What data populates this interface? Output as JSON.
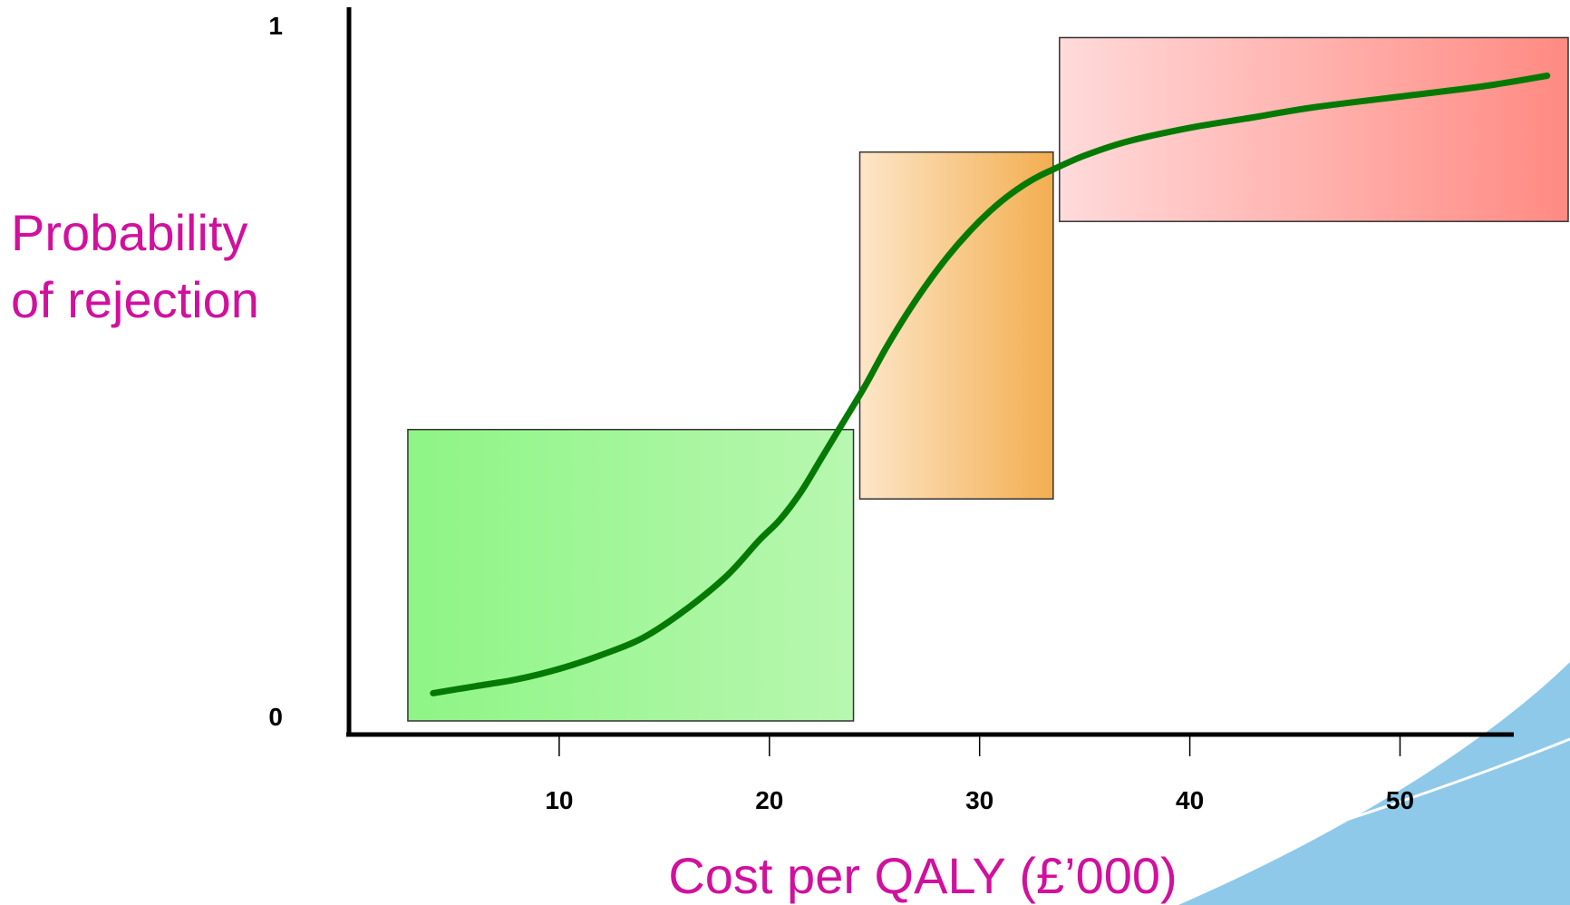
{
  "chart_data": {
    "type": "line",
    "title": "",
    "xlabel": "Cost per QALY (£’000)",
    "ylabel_lines": [
      "Probability",
      "of rejection"
    ],
    "xlim": [
      0,
      58
    ],
    "ylim": [
      0,
      1
    ],
    "x_ticks": [
      10,
      20,
      30,
      40,
      50
    ],
    "x_tick_labels": [
      "10",
      "20",
      "30",
      "40",
      "50"
    ],
    "y_tick_labels": {
      "min": "0",
      "max": "1"
    },
    "grid": false,
    "legend": "none",
    "curve": {
      "x": [
        4,
        6,
        8,
        10,
        12,
        14,
        16,
        18,
        19.5,
        20.5,
        21.5,
        22.5,
        23.5,
        24.5,
        25.5,
        26.5,
        27.5,
        28.5,
        29.5,
        30.5,
        31.5,
        32.5,
        33.5,
        35,
        37,
        40,
        43,
        46,
        50,
        54,
        57
      ],
      "y": [
        0.04,
        0.05,
        0.06,
        0.075,
        0.095,
        0.12,
        0.16,
        0.21,
        0.26,
        0.29,
        0.33,
        0.38,
        0.43,
        0.48,
        0.535,
        0.585,
        0.63,
        0.67,
        0.705,
        0.735,
        0.76,
        0.78,
        0.795,
        0.815,
        0.835,
        0.855,
        0.87,
        0.885,
        0.9,
        0.915,
        0.93
      ]
    },
    "regions": [
      {
        "x_start": 2.8,
        "x_end": 24.0,
        "y_start": 0.0,
        "y_end": 0.42,
        "color_light": "#b8f7b0",
        "color_dark": "#8ef585"
      },
      {
        "x_start": 24.3,
        "x_end": 33.5,
        "y_start": 0.32,
        "y_end": 0.82,
        "color_light": "#fde6c8",
        "color_dark": "#f3ae50"
      },
      {
        "x_start": 33.8,
        "x_end": 58.0,
        "y_start": 0.72,
        "y_end": 0.985,
        "color_light": "#ffdada",
        "color_dark": "#ff8a82"
      }
    ],
    "colors": {
      "curve": "#047a04",
      "axis": "#000000",
      "title_text": "#d1109e",
      "decor": "#8ec9ea"
    }
  }
}
